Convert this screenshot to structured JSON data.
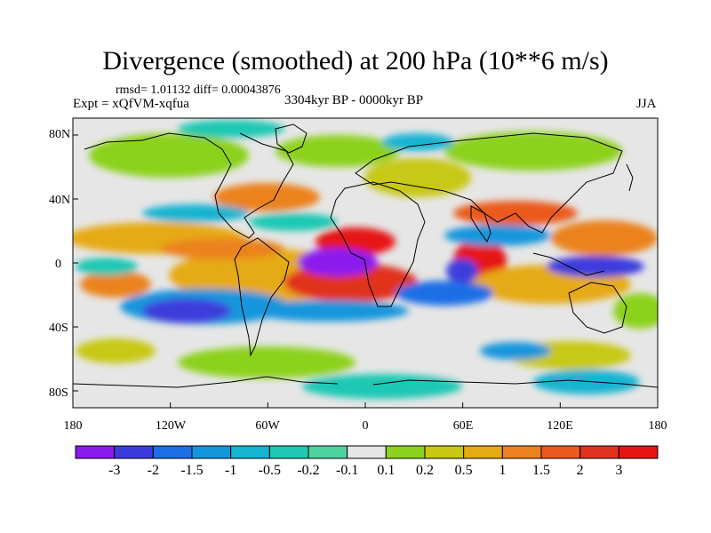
{
  "title": "Divergence (smoothed) at 200 hPa (10**6 m/s)",
  "stats": "rmsd= 1.01132  diff= 0.00043876",
  "experiment": "Expt = xQfVM-xqfua",
  "period": "3304kyr BP - 0000kyr BP",
  "season": "JJA",
  "y_axis_labels": [
    "80N",
    "40N",
    "0",
    "40S",
    "80S"
  ],
  "x_axis_labels": [
    "180",
    "120W",
    "60W",
    "0",
    "60E",
    "120E",
    "180"
  ],
  "colorbar": {
    "labels": [
      "-3",
      "-2",
      "-1.5",
      "-1",
      "-0.5",
      "-0.2",
      "-0.1",
      "0.1",
      "0.2",
      "0.5",
      "1",
      "1.5",
      "2",
      "3"
    ],
    "colors": [
      "#8c1aed",
      "#3c3cdc",
      "#1e6ee6",
      "#1496dc",
      "#14b4d2",
      "#1ec8b4",
      "#50d2a0",
      "#e6e6e6",
      "#8cd21e",
      "#c8c814",
      "#e6aa14",
      "#eb821e",
      "#eb5a1e",
      "#e1321e",
      "#e61414"
    ]
  },
  "colors": {
    "background": "#e6e6e6",
    "coastline": "#000000"
  }
}
